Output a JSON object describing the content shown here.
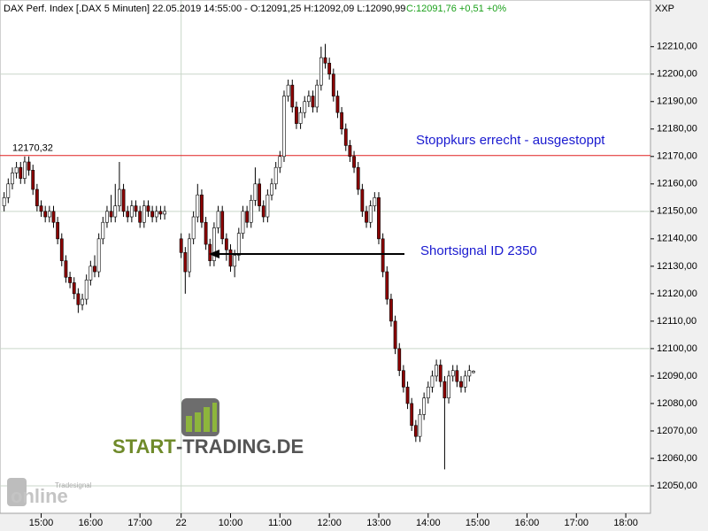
{
  "chart_data": {
    "type": "candlestick",
    "header": "DAX Perf. Index [.DAX  5 Minuten] 22.05.2019 14:55:00 - O:12091,25 H:12092,09 L:12090,99",
    "header_change": "C:12091,76 +0,51 +0%",
    "corner_label": "XXP",
    "annotations": [
      "Stoppkurs errecht - ausgestoppt",
      "Shortsignal ID 2350"
    ],
    "stop_line": {
      "value": 12170.32,
      "label": "12170,32",
      "color": "#e02020"
    },
    "watermark": {
      "brand": "START",
      "rest": "-TRADING.DE",
      "vendor_small": "Tradesignal",
      "vendor": "online"
    },
    "up_color": "#ffffff",
    "down_color": "#8b0000",
    "xlim": [
      -1,
      157
    ],
    "ylim": [
      12040,
      12227
    ],
    "xticks": [
      {
        "value": 9,
        "label": "15:00"
      },
      {
        "value": 21,
        "label": "16:00"
      },
      {
        "value": 33,
        "label": "17:00"
      },
      {
        "value": 43,
        "label": "22"
      },
      {
        "value": 55,
        "label": "10:00"
      },
      {
        "value": 67,
        "label": "11:00"
      },
      {
        "value": 79,
        "label": "12:00"
      },
      {
        "value": 91,
        "label": "13:00"
      },
      {
        "value": 103,
        "label": "14:00"
      },
      {
        "value": 115,
        "label": "15:00"
      },
      {
        "value": 127,
        "label": "16:00"
      },
      {
        "value": 139,
        "label": "17:00"
      },
      {
        "value": 151,
        "label": "18:00"
      }
    ],
    "yticks": [
      {
        "value": 12050,
        "label": "12050,00"
      },
      {
        "value": 12060,
        "label": "12060,00"
      },
      {
        "value": 12070,
        "label": "12070,00"
      },
      {
        "value": 12080,
        "label": "12080,00"
      },
      {
        "value": 12090,
        "label": "12090,00"
      },
      {
        "value": 12100,
        "label": "12100,00"
      },
      {
        "value": 12110,
        "label": "12110,00"
      },
      {
        "value": 12120,
        "label": "12120,00"
      },
      {
        "value": 12130,
        "label": "12130,00"
      },
      {
        "value": 12140,
        "label": "12140,00"
      },
      {
        "value": 12150,
        "label": "12150,00"
      },
      {
        "value": 12160,
        "label": "12160,00"
      },
      {
        "value": 12170,
        "label": "12170,00"
      },
      {
        "value": 12180,
        "label": "12180,00"
      },
      {
        "value": 12190,
        "label": "12190,00"
      },
      {
        "value": 12200,
        "label": "12200,00"
      },
      {
        "value": 12210,
        "label": "12210,00"
      }
    ],
    "grid_y": [
      12050,
      12100,
      12150,
      12200
    ],
    "grid_x": [
      43
    ],
    "x": [
      0,
      1,
      2,
      3,
      4,
      5,
      6,
      7,
      8,
      9,
      10,
      11,
      12,
      13,
      14,
      15,
      16,
      17,
      18,
      19,
      20,
      21,
      22,
      23,
      24,
      25,
      26,
      27,
      28,
      29,
      30,
      31,
      32,
      33,
      34,
      35,
      36,
      37,
      38,
      39,
      43,
      44,
      45,
      46,
      47,
      48,
      49,
      50,
      51,
      52,
      53,
      54,
      55,
      56,
      57,
      58,
      59,
      60,
      61,
      62,
      63,
      64,
      65,
      66,
      67,
      68,
      69,
      70,
      71,
      72,
      73,
      74,
      75,
      76,
      77,
      78,
      79,
      80,
      81,
      82,
      83,
      84,
      85,
      86,
      87,
      88,
      89,
      90,
      91,
      92,
      93,
      94,
      95,
      96,
      97,
      98,
      99,
      100,
      101,
      102,
      103,
      104,
      105,
      106,
      107,
      108,
      109,
      110,
      111,
      112,
      113,
      114
    ],
    "open": [
      12152,
      12155,
      12160,
      12164,
      12166,
      12162,
      12168,
      12165,
      12158,
      12152,
      12150,
      12148,
      12150,
      12146,
      12140,
      12132,
      12126,
      12124,
      12120,
      12116,
      12118,
      12125,
      12130,
      12128,
      12140,
      12146,
      12150,
      12148,
      12152,
      12158,
      12150,
      12148,
      12152,
      12150,
      12146,
      12152,
      12150,
      12148,
      12150,
      12149,
      12140,
      12135,
      12128,
      12140,
      12148,
      12156,
      12146,
      12138,
      12132,
      12144,
      12150,
      12140,
      12136,
      12130,
      12134,
      12142,
      12150,
      12146,
      12154,
      12160,
      12152,
      12148,
      12156,
      12160,
      12166,
      12170,
      12192,
      12196,
      12188,
      12182,
      12186,
      12190,
      12192,
      12188,
      12196,
      12206,
      12204,
      12200,
      12192,
      12186,
      12180,
      12174,
      12170,
      12166,
      12158,
      12150,
      12146,
      12152,
      12155,
      12140,
      12128,
      12118,
      12110,
      12100,
      12092,
      12086,
      12080,
      12072,
      12068,
      12076,
      12082,
      12086,
      12090,
      12094,
      12088,
      12082,
      12090,
      12092,
      12088,
      12086,
      12090,
      12091.25
    ],
    "high": [
      12157,
      12162,
      12166,
      12168,
      12168,
      12170,
      12170,
      12167,
      12160,
      12154,
      12152,
      12152,
      12152,
      12148,
      12142,
      12134,
      12128,
      12126,
      12122,
      12120,
      12127,
      12132,
      12134,
      12142,
      12148,
      12152,
      12156,
      12160,
      12168,
      12160,
      12152,
      12154,
      12154,
      12152,
      12154,
      12154,
      12152,
      12152,
      12152,
      12152,
      12142,
      12137,
      12142,
      12150,
      12160,
      12158,
      12148,
      12140,
      12146,
      12152,
      12152,
      12142,
      12138,
      12136,
      12144,
      12152,
      12152,
      12156,
      12166,
      12162,
      12154,
      12158,
      12162,
      12168,
      12172,
      12194,
      12198,
      12198,
      12190,
      12188,
      12192,
      12194,
      12194,
      12198,
      12210,
      12211,
      12206,
      12202,
      12194,
      12188,
      12182,
      12176,
      12172,
      12168,
      12160,
      12152,
      12154,
      12157,
      12157,
      12142,
      12130,
      12120,
      12112,
      12102,
      12094,
      12088,
      12082,
      12074,
      12078,
      12084,
      12088,
      12092,
      12096,
      12096,
      12090,
      12092,
      12094,
      12094,
      12090,
      12092,
      12094,
      12092.09
    ],
    "low": [
      12150,
      12153,
      12158,
      12162,
      12160,
      12160,
      12163,
      12156,
      12150,
      12148,
      12146,
      12146,
      12144,
      12138,
      12130,
      12124,
      12122,
      12118,
      12113,
      12114,
      12116,
      12123,
      12126,
      12126,
      12138,
      12144,
      12146,
      12146,
      12150,
      12148,
      12146,
      12146,
      12148,
      12144,
      12144,
      12148,
      12146,
      12146,
      12147,
      12147,
      12133,
      12120,
      12126,
      12138,
      12146,
      12144,
      12136,
      12130,
      12130,
      12142,
      12138,
      12132,
      12128,
      12126,
      12132,
      12140,
      12144,
      12144,
      12152,
      12150,
      12146,
      12146,
      12154,
      12158,
      12164,
      12168,
      12190,
      12186,
      12180,
      12180,
      12184,
      12188,
      12186,
      12186,
      12194,
      12202,
      12198,
      12190,
      12184,
      12178,
      12172,
      12168,
      12164,
      12156,
      12148,
      12144,
      12144,
      12150,
      12138,
      12126,
      12116,
      12108,
      12098,
      12090,
      12084,
      12078,
      12070,
      12066,
      12066,
      12074,
      12080,
      12084,
      12088,
      12086,
      12056,
      12080,
      12088,
      12086,
      12084,
      12084,
      12088,
      12090.99
    ],
    "close": [
      12155,
      12160,
      12164,
      12166,
      12162,
      12168,
      12165,
      12158,
      12152,
      12150,
      12148,
      12150,
      12146,
      12140,
      12132,
      12126,
      12124,
      12120,
      12116,
      12118,
      12125,
      12130,
      12128,
      12140,
      12146,
      12150,
      12148,
      12152,
      12158,
      12150,
      12148,
      12152,
      12150,
      12146,
      12152,
      12150,
      12148,
      12150,
      12149,
      12150,
      12135,
      12128,
      12140,
      12148,
      12156,
      12146,
      12138,
      12132,
      12144,
      12150,
      12140,
      12136,
      12130,
      12134,
      12142,
      12150,
      12146,
      12154,
      12160,
      12152,
      12148,
      12156,
      12160,
      12166,
      12170,
      12192,
      12196,
      12188,
      12182,
      12186,
      12190,
      12192,
      12188,
      12196,
      12206,
      12204,
      12200,
      12192,
      12186,
      12180,
      12174,
      12170,
      12166,
      12158,
      12150,
      12146,
      12152,
      12155,
      12140,
      12128,
      12118,
      12110,
      12100,
      12092,
      12086,
      12080,
      12072,
      12068,
      12076,
      12082,
      12086,
      12090,
      12094,
      12088,
      12082,
      12090,
      12092,
      12088,
      12086,
      12090,
      12092,
      12091.76
    ]
  }
}
